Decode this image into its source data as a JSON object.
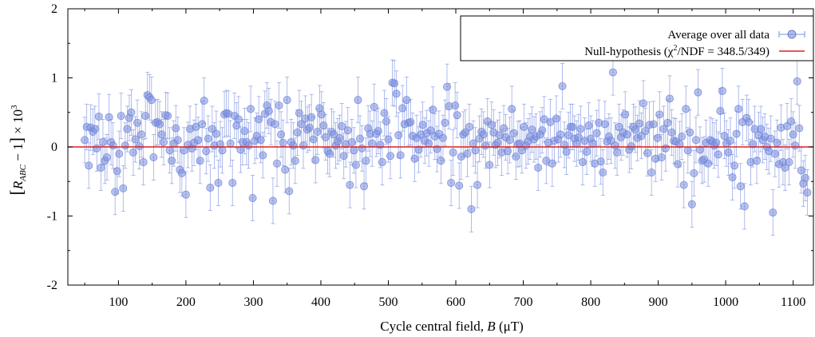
{
  "chart_data": {
    "type": "scatter",
    "xlabel": "Cycle central field, B (μT)",
    "xlabel_parts": {
      "prefix": "Cycle central field, ",
      "var": "B",
      "unit": " (μT)"
    },
    "ylabel": "[R_ABC − 1] × 10^3",
    "ylabel_parts": {
      "open": "[",
      "var": "R",
      "sub": "ABC",
      "rest": " − 1",
      "close": "]",
      "times": " × 10",
      "exp": "3"
    },
    "xlim": [
      25,
      1130
    ],
    "ylim": [
      -2,
      2
    ],
    "x_ticks": [
      100,
      200,
      300,
      400,
      500,
      600,
      700,
      800,
      900,
      1000,
      1100
    ],
    "y_ticks": [
      -2,
      -1,
      0,
      1,
      2
    ],
    "x_tick_labels": [
      "100",
      "200",
      "300",
      "400",
      "500",
      "600",
      "700",
      "800",
      "900",
      "1000",
      "1100"
    ],
    "y_tick_labels": [
      "-2",
      "-1",
      "0",
      "1",
      "2"
    ],
    "grid": false,
    "legend_position": "top-right",
    "series": [
      {
        "name": "Average over all data",
        "color": "#7b90e0",
        "x_start": 50,
        "x_step": 3.0,
        "y_error": 0.33,
        "x_error": 1.5,
        "values": [
          0.1,
          0.29,
          -0.27,
          0.28,
          0.22,
          0.26,
          -0.02,
          0.44,
          -0.3,
          0.07,
          -0.2,
          -0.15,
          0.43,
          0.07,
          0.02,
          -0.65,
          -0.35,
          -0.1,
          0.45,
          -0.6,
          0.02,
          0.26,
          0.42,
          0.5,
          -0.08,
          0.11,
          0.35,
          0.01,
          0.18,
          -0.22,
          0.45,
          0.75,
          0.72,
          0.68,
          -0.15,
          0.35,
          0.36,
          0.33,
          0.18,
          0.07,
          0.46,
          0.45,
          -0.05,
          -0.2,
          0.05,
          0.27,
          0.1,
          -0.33,
          -0.38,
          -0.05,
          -0.69,
          0.03,
          0.26,
          -0.02,
          0.06,
          0.29,
          0.1,
          -0.2,
          0.33,
          0.67,
          -0.06,
          0.12,
          -0.59,
          0.26,
          0.02,
          0.19,
          -0.52,
          0.04,
          -0.05,
          0.47,
          0.49,
          0.48,
          0.05,
          -0.52,
          0.45,
          0.31,
          0.4,
          -0.04,
          0.07,
          0.23,
          0.07,
          0.02,
          0.55,
          -0.74,
          0.09,
          0.16,
          0.4,
          0.1,
          -0.12,
          0.48,
          0.6,
          0.52,
          0.36,
          -0.78,
          0.33,
          -0.24,
          0.6,
          0.18,
          0.06,
          -0.33,
          0.68,
          -0.64,
          0.07,
          0.02,
          -0.2,
          0.21,
          0.49,
          0.33,
          0.02,
          0.41,
          0.25,
          0.28,
          0.43,
          0.11,
          -0.19,
          0.22,
          0.56,
          0.47,
          0.31,
          0.14,
          -0.06,
          -0.1,
          0.22,
          0.18,
          0.02,
          0.08,
          0.13,
          0.3,
          -0.13,
          0.04,
          0.24,
          -0.55,
          0.07,
          -0.05,
          -0.26,
          0.68,
          0.12,
          -0.02,
          -0.57,
          -0.2,
          0.27,
          0.19,
          0.05,
          0.58,
          0.19,
          0.23,
          0.03,
          -0.22,
          0.49,
          0.37,
          0.11,
          -0.13,
          0.93,
          0.92,
          0.77,
          0.17,
          -0.12,
          0.56,
          0.33,
          0.68,
          0.35,
          0.36,
          0.16,
          -0.17,
          0.13,
          -0.04,
          0.18,
          0.32,
          0.09,
          0.2,
          0.05,
          0.24,
          0.54,
          0.15,
          -0.03,
          0.19,
          -0.2,
          0.13,
          0.35,
          0.87,
          0.59,
          -0.52,
          -0.08,
          0.6,
          0.46,
          -0.56,
          -0.14,
          0.18,
          0.21,
          -0.1,
          0.29,
          -0.9,
          0.05,
          -0.05,
          -0.55,
          0.12,
          0.22,
          0.18,
          0.02,
          0.37,
          -0.26,
          0.32,
          0.21,
          0.03,
          0.06,
          0.17,
          -0.08,
          0.27,
          0.14,
          -0.06,
          0.1,
          0.55,
          0.2,
          -0.14,
          0.04,
          0.05,
          -0.05,
          0.29,
          0.02,
          0.08,
          0.15,
          0.25,
          0.11,
          0.15,
          -0.3,
          0.18,
          0.24,
          0.4,
          -0.2,
          0.06,
          0.36,
          -0.24,
          0.09,
          0.41,
          0.11,
          0.18,
          0.88,
          0.03,
          -0.07,
          0.17,
          0.29,
          0.29,
          0.12,
          0.05,
          0.14,
          0.26,
          -0.22,
          0.09,
          -0.07,
          0.31,
          0.12,
          0.05,
          -0.24,
          0.2,
          0.35,
          -0.21,
          -0.37,
          0.33,
          0.08,
          0.15,
          0.09,
          1.08,
          0.02,
          -0.08,
          0.29,
          0.14,
          0.21,
          0.47,
          0.18,
          -0.04,
          0.01,
          0.29,
          0.25,
          0.13,
          0.34,
          0.16,
          0.63,
          0.23,
          -0.09,
          0.32,
          -0.37,
          0.33,
          -0.17,
          0.13,
          0.47,
          -0.15,
          0.26,
          -0.02,
          0.35,
          0.7,
          0.21,
          0.09,
          0.08,
          -0.25,
          0.04,
          0.15,
          -0.55,
          0.55,
          -0.05,
          0.21,
          -0.83,
          -0.38,
          0.1,
          0.79,
          -0.04,
          -0.2,
          -0.18,
          0.06,
          -0.24,
          0.1,
          0.08,
          0.02,
          0.06,
          -0.11,
          0.52,
          0.81,
          0.16,
          0.05,
          -0.08,
          0.09,
          -0.44,
          -0.27,
          0.19,
          0.55,
          -0.57,
          0.36,
          -0.86,
          0.42,
          0.36,
          -0.22,
          0.04,
          0.26,
          -0.2,
          0.17,
          0.26,
          0.1,
          0.15,
          0.0,
          -0.06,
          0.12,
          -0.95,
          -0.1,
          0.06,
          -0.25,
          0.28,
          -0.22,
          -0.3,
          0.3,
          -0.22,
          0.37,
          0.18,
          0.02,
          0.95,
          0.27,
          -0.34,
          -0.53,
          -0.45,
          -0.66
        ]
      },
      {
        "name": "Null-hypothesis (χ²/NDF = 348.5/349)",
        "name_parts": {
          "prefix": "Null-hypothesis (",
          "chi": "χ",
          "sq": "2",
          "rest": "/NDF = 348.5/349)"
        },
        "color": "#e02020",
        "type": "line",
        "y": 0
      }
    ]
  }
}
